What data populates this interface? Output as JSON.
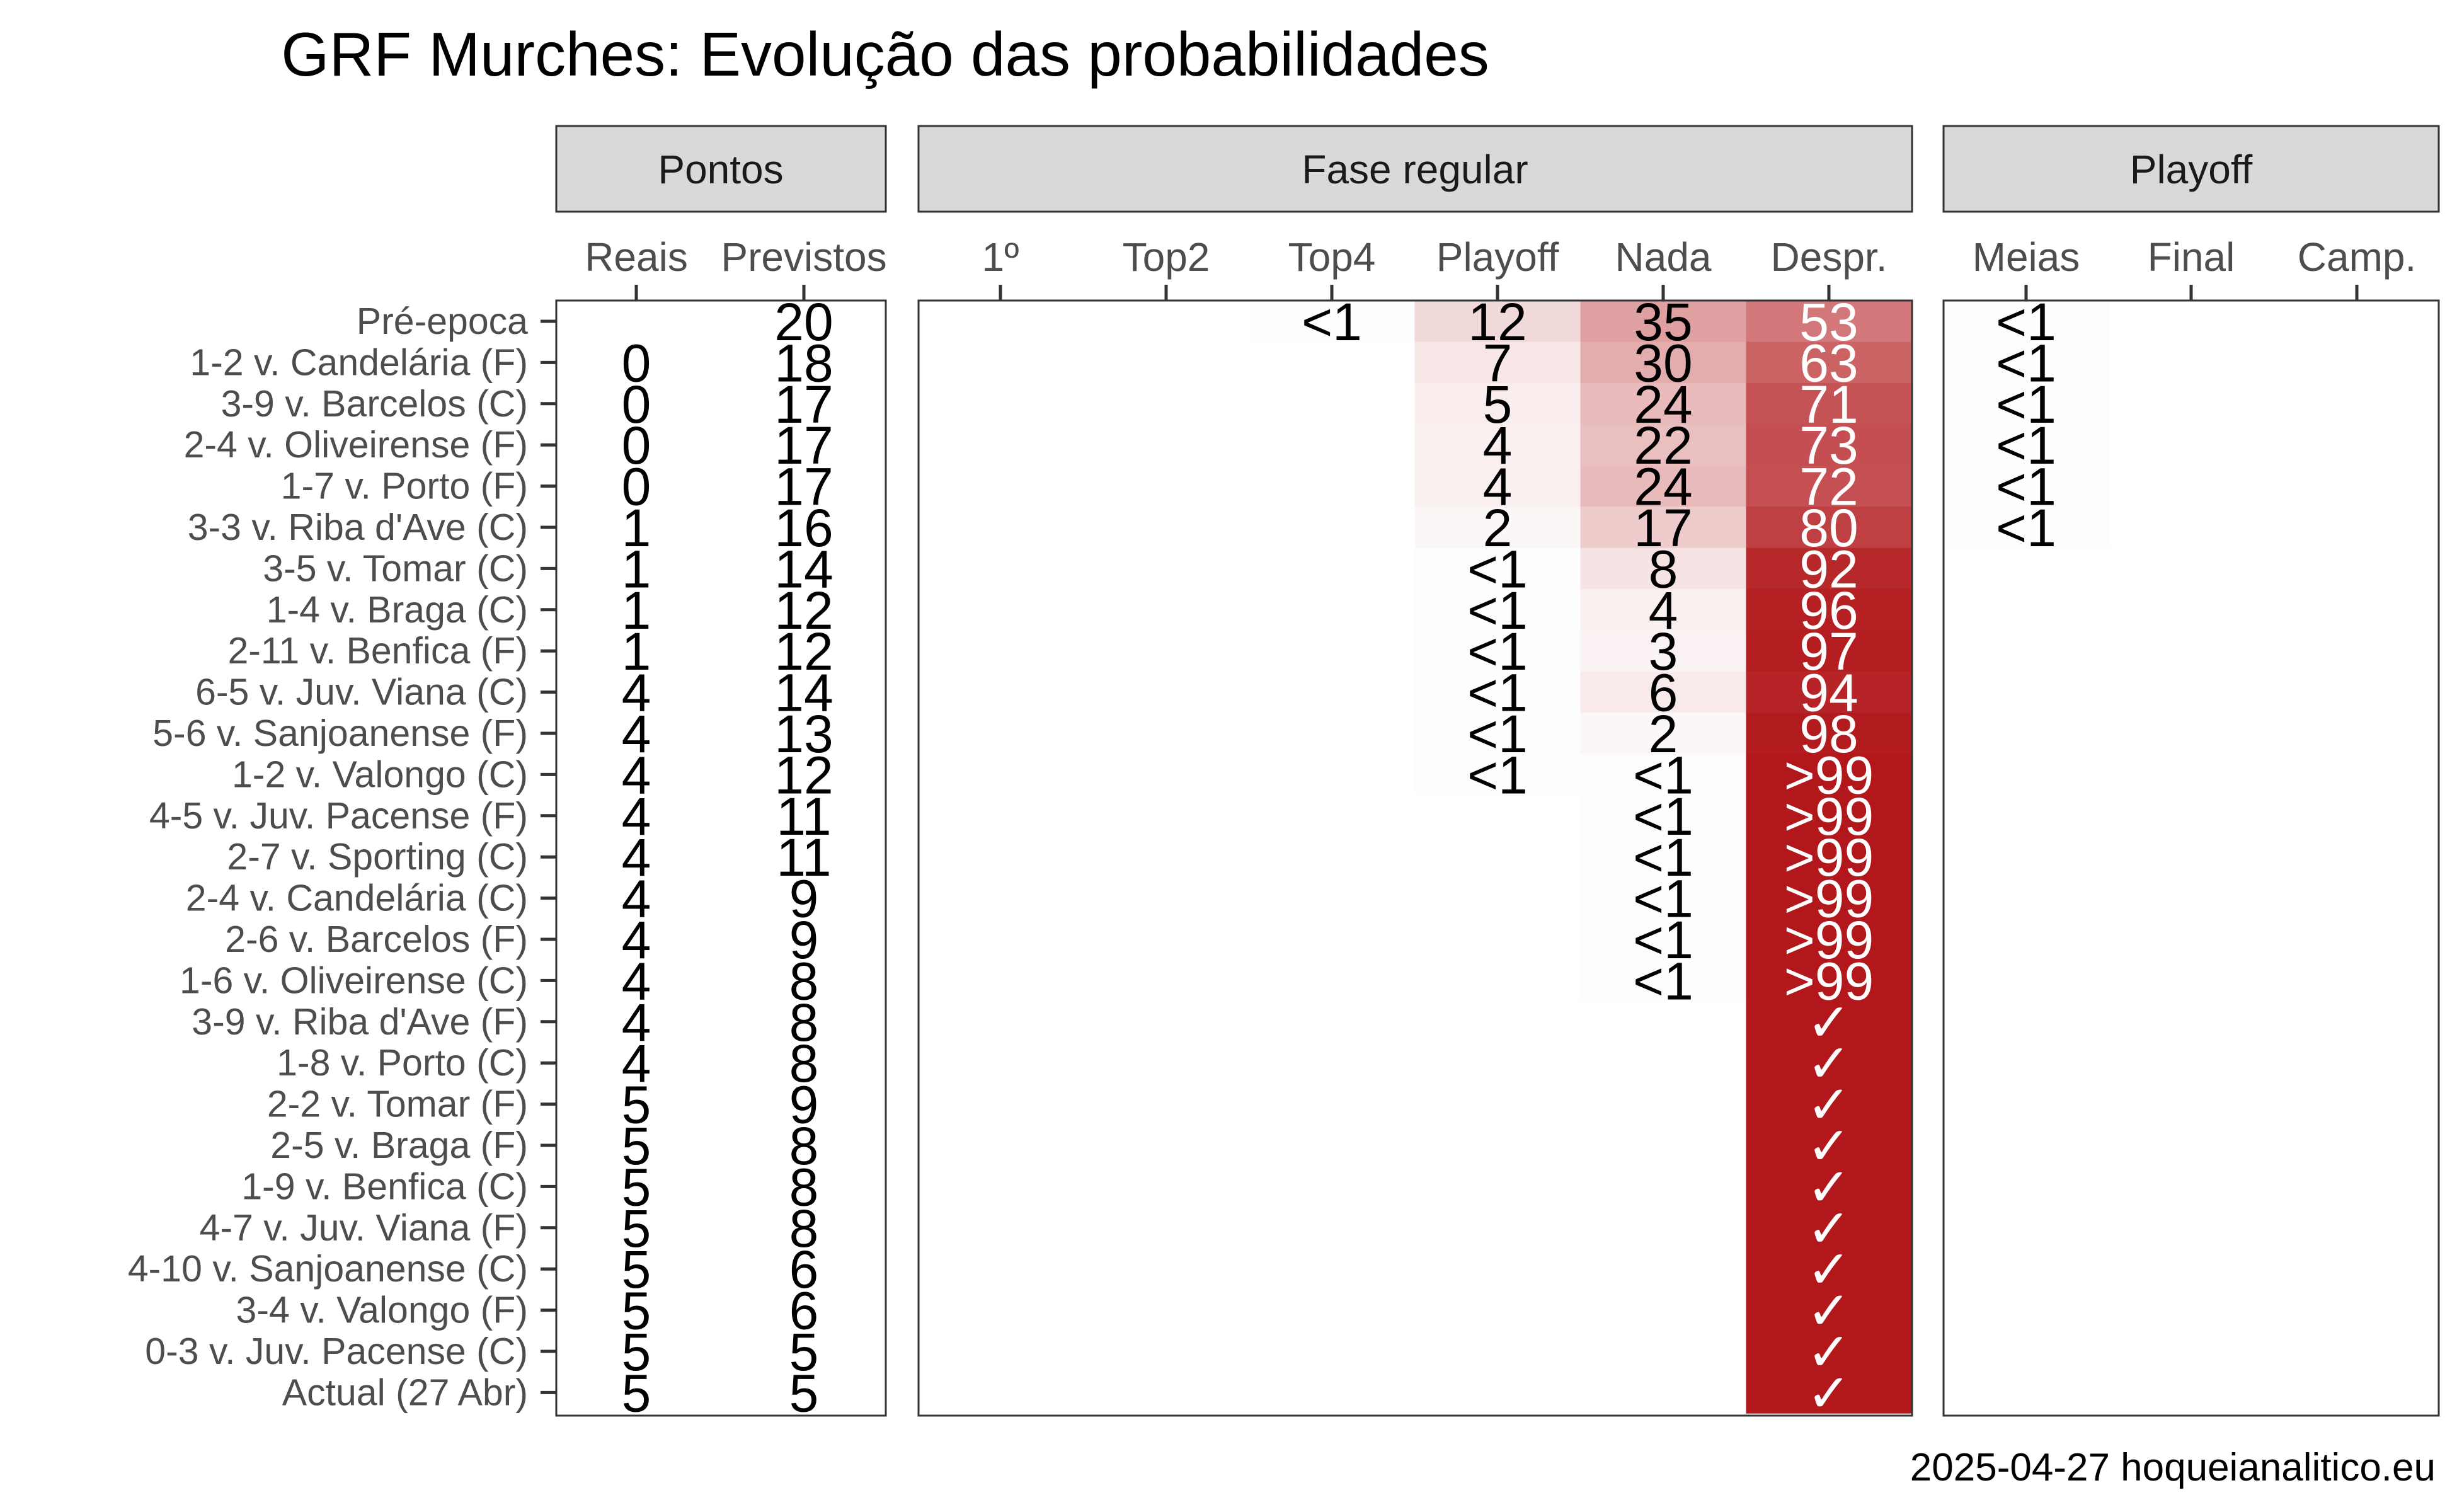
{
  "chart_data": {
    "type": "heatmap",
    "title": "GRF Murches: Evolução das probabilidades",
    "caption": "2025-04-27 hoqueianalitico.eu",
    "panels": [
      {
        "label": "Pontos",
        "columns": [
          "Reais",
          "Previstos"
        ]
      },
      {
        "label": "Fase regular",
        "columns": [
          "1º",
          "Top2",
          "Top4",
          "Playoff",
          "Nada",
          "Despr."
        ]
      },
      {
        "label": "Playoff",
        "columns": [
          "Meias",
          "Final",
          "Camp."
        ]
      }
    ],
    "rows": [
      "Pré-epoca",
      "1-2 v. Candelária (F)",
      "3-9 v. Barcelos (C)",
      "2-4 v. Oliveirense (F)",
      "1-7 v. Porto (F)",
      "3-3 v. Riba d'Ave (C)",
      "3-5 v. Tomar (C)",
      "1-4 v. Braga (C)",
      "2-11 v. Benfica (F)",
      "6-5 v. Juv. Viana (C)",
      "5-6 v. Sanjoanense (F)",
      "1-2 v. Valongo (C)",
      "4-5 v. Juv. Pacense (F)",
      "2-7 v. Sporting (C)",
      "2-4 v. Candelária (C)",
      "2-6 v. Barcelos (F)",
      "1-6 v. Oliveirense (C)",
      "3-9 v. Riba d'Ave (F)",
      "1-8 v. Porto (C)",
      "2-2 v. Tomar (F)",
      "2-5 v. Braga (F)",
      "1-9 v. Benfica (C)",
      "4-7 v. Juv. Viana (F)",
      "4-10 v. Sanjoanense (C)",
      "3-4 v. Valongo (F)",
      "0-3 v. Juv. Pacense (C)",
      "Actual (27 Abr)"
    ],
    "points": {
      "reais": [
        "",
        "0",
        "0",
        "0",
        "0",
        "1",
        "1",
        "1",
        "1",
        "4",
        "4",
        "4",
        "4",
        "4",
        "4",
        "4",
        "4",
        "4",
        "4",
        "5",
        "5",
        "5",
        "5",
        "5",
        "5",
        "5",
        "5"
      ],
      "previstos": [
        "20",
        "18",
        "17",
        "17",
        "17",
        "16",
        "14",
        "12",
        "12",
        "14",
        "13",
        "12",
        "11",
        "11",
        "9",
        "9",
        "8",
        "8",
        "8",
        "9",
        "8",
        "8",
        "8",
        "6",
        "6",
        "5",
        "5"
      ]
    },
    "fase_regular": {
      "1º": [
        "",
        "",
        "",
        "",
        "",
        "",
        "",
        "",
        "",
        "",
        "",
        "",
        "",
        "",
        "",
        "",
        "",
        "",
        "",
        "",
        "",
        "",
        "",
        "",
        "",
        "",
        ""
      ],
      "Top2": [
        "",
        "",
        "",
        "",
        "",
        "",
        "",
        "",
        "",
        "",
        "",
        "",
        "",
        "",
        "",
        "",
        "",
        "",
        "",
        "",
        "",
        "",
        "",
        "",
        "",
        "",
        ""
      ],
      "Top4": [
        "<1",
        "",
        "",
        "",
        "",
        "",
        "",
        "",
        "",
        "",
        "",
        "",
        "",
        "",
        "",
        "",
        "",
        "",
        "",
        "",
        "",
        "",
        "",
        "",
        "",
        "",
        ""
      ],
      "Playoff": [
        "12",
        "7",
        "5",
        "4",
        "4",
        "2",
        "<1",
        "<1",
        "<1",
        "<1",
        "<1",
        "<1",
        "",
        "",
        "",
        "",
        "",
        "",
        "",
        "",
        "",
        "",
        "",
        "",
        "",
        "",
        ""
      ],
      "Nada": [
        "35",
        "30",
        "24",
        "22",
        "24",
        "17",
        "8",
        "4",
        "3",
        "6",
        "2",
        "<1",
        "<1",
        "<1",
        "<1",
        "<1",
        "<1",
        "",
        "",
        "",
        "",
        "",
        "",
        "",
        "",
        "",
        ""
      ],
      "Despr.": [
        "53",
        "63",
        "71",
        "73",
        "72",
        "80",
        "92",
        "96",
        "97",
        "94",
        "98",
        ">99",
        ">99",
        ">99",
        ">99",
        ">99",
        ">99",
        "✓",
        "✓",
        "✓",
        "✓",
        "✓",
        "✓",
        "✓",
        "✓",
        "✓",
        "✓"
      ]
    },
    "playoff": {
      "Meias": [
        "<1",
        "<1",
        "<1",
        "<1",
        "<1",
        "<1",
        "",
        "",
        "",
        "",
        "",
        "",
        "",
        "",
        "",
        "",
        "",
        "",
        "",
        "",
        "",
        "",
        "",
        "",
        "",
        "",
        ""
      ],
      "Final": [
        "",
        "",
        "",
        "",
        "",
        "",
        "",
        "",
        "",
        "",
        "",
        "",
        "",
        "",
        "",
        "",
        "",
        "",
        "",
        "",
        "",
        "",
        "",
        "",
        "",
        "",
        ""
      ],
      "Camp.": [
        "",
        "",
        "",
        "",
        "",
        "",
        "",
        "",
        "",
        "",
        "",
        "",
        "",
        "",
        "",
        "",
        "",
        "",
        "",
        "",
        "",
        "",
        "",
        "",
        "",
        "",
        ""
      ]
    },
    "color_scale": {
      "low": "#ffffff",
      "high": "#b2182b"
    }
  }
}
